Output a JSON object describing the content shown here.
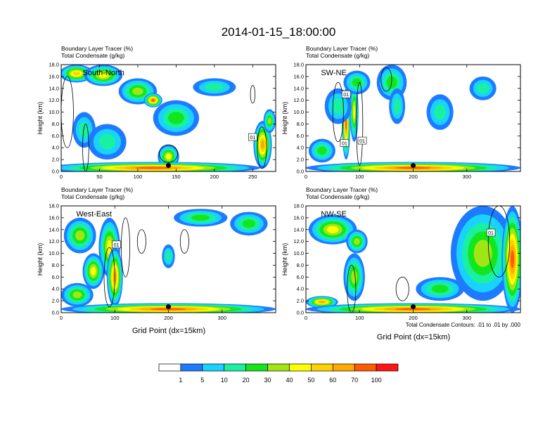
{
  "title": "2014-01-15_18:00:00",
  "colors": {
    "scale": [
      "#ffffff",
      "#1e7bff",
      "#19d2ff",
      "#19f0a0",
      "#14e61e",
      "#a0e614",
      "#ffff00",
      "#ffd200",
      "#ffaa00",
      "#ff5a00",
      "#ff1414"
    ],
    "contour": "#000000",
    "marker": "#000000"
  },
  "footnote": "Total Condensate Contours: .01 to .01 by .000",
  "x_axis_label": "Grid Point (dx=15km)",
  "chart_data": [
    {
      "type": "heatmap",
      "panel_label": "South-North",
      "subtitle_line1": "Boundary Layer Tracer    (%)",
      "subtitle_line2": "Total Condensate    (g/kg)",
      "xlabel": "",
      "ylabel": "Height (km)",
      "xlim": [
        0,
        280
      ],
      "ylim": [
        0,
        18
      ],
      "x_ticks": [
        0,
        50,
        100,
        150,
        200,
        250
      ],
      "y_ticks": [
        "0.0",
        "2.0",
        "4.0",
        "6.0",
        "8.0",
        "10.0",
        "12.0",
        "14.0",
        "16.0",
        "18.0"
      ],
      "marker": {
        "x": 140,
        "y": 1.0
      },
      "contour_labels": [
        {
          "text": "01",
          "x": 250,
          "y": 5.8
        }
      ],
      "blobs": [
        {
          "x": 20,
          "y": 16.5,
          "rx": 22,
          "ry": 1.5,
          "v": 55
        },
        {
          "x": 55,
          "y": 16.2,
          "rx": 25,
          "ry": 1.8,
          "v": 45
        },
        {
          "x": 100,
          "y": 13.5,
          "rx": 25,
          "ry": 2.2,
          "v": 35
        },
        {
          "x": 120,
          "y": 12.0,
          "rx": 12,
          "ry": 1.2,
          "v": 75
        },
        {
          "x": 150,
          "y": 9.0,
          "rx": 30,
          "ry": 3.0,
          "v": 25
        },
        {
          "x": 200,
          "y": 14.2,
          "rx": 28,
          "ry": 1.5,
          "v": 18
        },
        {
          "x": 30,
          "y": 7.0,
          "rx": 15,
          "ry": 3.0,
          "v": 10
        },
        {
          "x": 60,
          "y": 5.0,
          "rx": 25,
          "ry": 3.0,
          "v": 18
        },
        {
          "x": 140,
          "y": 2.5,
          "rx": 14,
          "ry": 2.0,
          "v": 45
        },
        {
          "x": 263,
          "y": 4.5,
          "rx": 12,
          "ry": 4.0,
          "v": 65
        },
        {
          "x": 272,
          "y": 8.5,
          "rx": 8,
          "ry": 2.0,
          "v": 35
        },
        {
          "x": 120,
          "y": 0.6,
          "rx": 140,
          "ry": 1.0,
          "v": 85
        }
      ],
      "contours": [
        {
          "x": 8,
          "y": 10.0,
          "rx": 8,
          "ry": 6.0
        },
        {
          "x": 32,
          "y": 4.0,
          "rx": 4,
          "ry": 4.0
        },
        {
          "x": 250,
          "y": 13.0,
          "rx": 3,
          "ry": 1.5
        },
        {
          "x": 140,
          "y": 3.0,
          "rx": 12,
          "ry": 1.5
        },
        {
          "x": 262,
          "y": 4.0,
          "rx": 6,
          "ry": 3.5
        }
      ]
    },
    {
      "type": "heatmap",
      "panel_label": "SW-NE",
      "subtitle_line1": "Boundary Layer Tracer    (%)",
      "subtitle_line2": "Total Condensate    (g/kg)",
      "xlabel": "",
      "ylabel": "Height (km)",
      "xlim": [
        0,
        400
      ],
      "ylim": [
        0,
        18
      ],
      "x_ticks": [
        0,
        100,
        200,
        300
      ],
      "y_ticks": [
        "0.0",
        "2.0",
        "4.0",
        "6.0",
        "8.0",
        "10.0",
        "12.0",
        "14.0",
        "16.0",
        "18.0"
      ],
      "marker": {
        "x": 200,
        "y": 1.0
      },
      "contour_labels": [
        {
          "text": "01",
          "x": 75,
          "y": 13.0
        },
        {
          "text": "01",
          "x": 72,
          "y": 4.8
        },
        {
          "text": "01",
          "x": 105,
          "y": 5.2
        }
      ],
      "blobs": [
        {
          "x": 75,
          "y": 8.0,
          "rx": 8,
          "ry": 6.0,
          "v": 75
        },
        {
          "x": 90,
          "y": 10.0,
          "rx": 8,
          "ry": 5.0,
          "v": 45
        },
        {
          "x": 60,
          "y": 11.0,
          "rx": 25,
          "ry": 3.0,
          "v": 18
        },
        {
          "x": 95,
          "y": 15.0,
          "rx": 25,
          "ry": 2.0,
          "v": 28
        },
        {
          "x": 160,
          "y": 15.0,
          "rx": 28,
          "ry": 3.0,
          "v": 28
        },
        {
          "x": 170,
          "y": 11.0,
          "rx": 15,
          "ry": 3.0,
          "v": 18
        },
        {
          "x": 250,
          "y": 10.0,
          "rx": 25,
          "ry": 3.0,
          "v": 15
        },
        {
          "x": 330,
          "y": 14.0,
          "rx": 25,
          "ry": 2.0,
          "v": 18
        },
        {
          "x": 30,
          "y": 3.5,
          "rx": 25,
          "ry": 2.0,
          "v": 28
        },
        {
          "x": 200,
          "y": 0.6,
          "rx": 200,
          "ry": 1.0,
          "v": 85
        }
      ],
      "contours": [
        {
          "x": 60,
          "y": 10.0,
          "rx": 10,
          "ry": 5.0
        },
        {
          "x": 100,
          "y": 8.0,
          "rx": 6,
          "ry": 7.0
        },
        {
          "x": 150,
          "y": 15.5,
          "rx": 10,
          "ry": 2.0
        }
      ]
    },
    {
      "type": "heatmap",
      "panel_label": "West-East",
      "subtitle_line1": "Boundary Layer Tracer    (%)",
      "subtitle_line2": "Total Condensate    (g/kg)",
      "xlabel": "Grid Point (dx=15km)",
      "ylabel": "Height (km)",
      "xlim": [
        0,
        400
      ],
      "ylim": [
        0,
        18
      ],
      "x_ticks": [
        0,
        100,
        200,
        300
      ],
      "y_ticks": [
        "0.0",
        "2.0",
        "4.0",
        "6.0",
        "8.0",
        "10.0",
        "12.0",
        "14.0",
        "16.0",
        "18.0"
      ],
      "marker": {
        "x": 200,
        "y": 1.0
      },
      "contour_labels": [
        {
          "text": "01",
          "x": 103,
          "y": 11.5
        }
      ],
      "blobs": [
        {
          "x": 35,
          "y": 13.0,
          "rx": 30,
          "ry": 3.0,
          "v": 35
        },
        {
          "x": 90,
          "y": 11.0,
          "rx": 20,
          "ry": 5.0,
          "v": 45
        },
        {
          "x": 100,
          "y": 6.0,
          "rx": 15,
          "ry": 5.0,
          "v": 60
        },
        {
          "x": 60,
          "y": 7.0,
          "rx": 20,
          "ry": 3.0,
          "v": 40
        },
        {
          "x": 30,
          "y": 3.0,
          "rx": 30,
          "ry": 2.0,
          "v": 30
        },
        {
          "x": 260,
          "y": 16.0,
          "rx": 50,
          "ry": 1.5,
          "v": 20
        },
        {
          "x": 350,
          "y": 15.0,
          "rx": 35,
          "ry": 2.0,
          "v": 25
        },
        {
          "x": 200,
          "y": 9.5,
          "rx": 12,
          "ry": 2.0,
          "v": 18
        },
        {
          "x": 200,
          "y": 0.6,
          "rx": 200,
          "ry": 1.0,
          "v": 80
        }
      ],
      "contours": [
        {
          "x": 120,
          "y": 11.0,
          "rx": 8,
          "ry": 5.0
        },
        {
          "x": 90,
          "y": 6.0,
          "rx": 10,
          "ry": 5.0
        },
        {
          "x": 150,
          "y": 12.0,
          "rx": 8,
          "ry": 2.0
        },
        {
          "x": 230,
          "y": 12.0,
          "rx": 8,
          "ry": 2.0
        }
      ]
    },
    {
      "type": "heatmap",
      "panel_label": "NW-SE",
      "subtitle_line1": "Boundary Layer Tracer    (%)",
      "subtitle_line2": "Total Condensate    (g/kg)",
      "xlabel": "Grid Point (dx=15km)",
      "ylabel": "",
      "xlim": [
        0,
        400
      ],
      "ylim": [
        0,
        18
      ],
      "x_ticks": [
        0,
        100,
        200,
        300
      ],
      "y_ticks": [
        "0.0",
        "2.0",
        "4.0",
        "6.0",
        "8.0",
        "10.0",
        "12.0",
        "14.0",
        "16.0",
        "18.0"
      ],
      "marker": {
        "x": 200,
        "y": 1.0
      },
      "contour_labels": [
        {
          "text": "01",
          "x": 345,
          "y": 13.5
        }
      ],
      "blobs": [
        {
          "x": 50,
          "y": 14.0,
          "rx": 45,
          "ry": 2.5,
          "v": 45
        },
        {
          "x": 95,
          "y": 12.0,
          "rx": 20,
          "ry": 2.0,
          "v": 30
        },
        {
          "x": 90,
          "y": 6.0,
          "rx": 20,
          "ry": 4.0,
          "v": 30
        },
        {
          "x": 330,
          "y": 10.0,
          "rx": 60,
          "ry": 8.0,
          "v": 30
        },
        {
          "x": 385,
          "y": 9.0,
          "rx": 20,
          "ry": 9.0,
          "v": 85
        },
        {
          "x": 250,
          "y": 4.0,
          "rx": 45,
          "ry": 2.0,
          "v": 25
        },
        {
          "x": 30,
          "y": 1.8,
          "rx": 30,
          "ry": 1.0,
          "v": 60
        },
        {
          "x": 200,
          "y": 0.6,
          "rx": 200,
          "ry": 1.0,
          "v": 80
        }
      ],
      "contours": [
        {
          "x": 360,
          "y": 12.0,
          "rx": 20,
          "ry": 6.0
        },
        {
          "x": 85,
          "y": 4.0,
          "rx": 8,
          "ry": 4.0
        },
        {
          "x": 180,
          "y": 4.0,
          "rx": 12,
          "ry": 2.0
        }
      ]
    }
  ],
  "colorbar": {
    "labels": [
      "1",
      "5",
      "10",
      "20",
      "30",
      "40",
      "50",
      "60",
      "70",
      "100"
    ],
    "thresholds": [
      1,
      5,
      10,
      20,
      30,
      40,
      50,
      60,
      70,
      100
    ]
  }
}
